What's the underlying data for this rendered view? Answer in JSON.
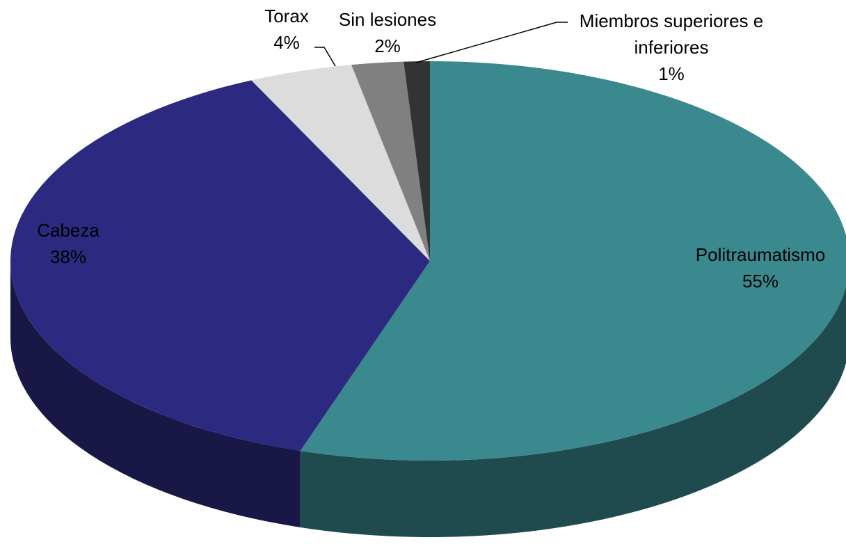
{
  "chart_data": {
    "type": "pie",
    "categories": [
      "Politraumatismo",
      "Cabeza",
      "Torax",
      "Sin lesiones",
      "Miembros superiores e inferiores"
    ],
    "values": [
      55,
      38,
      4,
      2,
      1
    ],
    "value_labels": [
      "55%",
      "38%",
      "4%",
      "2%",
      "1%"
    ],
    "colors": [
      "#3a898e",
      "#2b2a80",
      "#dcdcdc",
      "#808080",
      "#333333"
    ],
    "style": "3d"
  }
}
